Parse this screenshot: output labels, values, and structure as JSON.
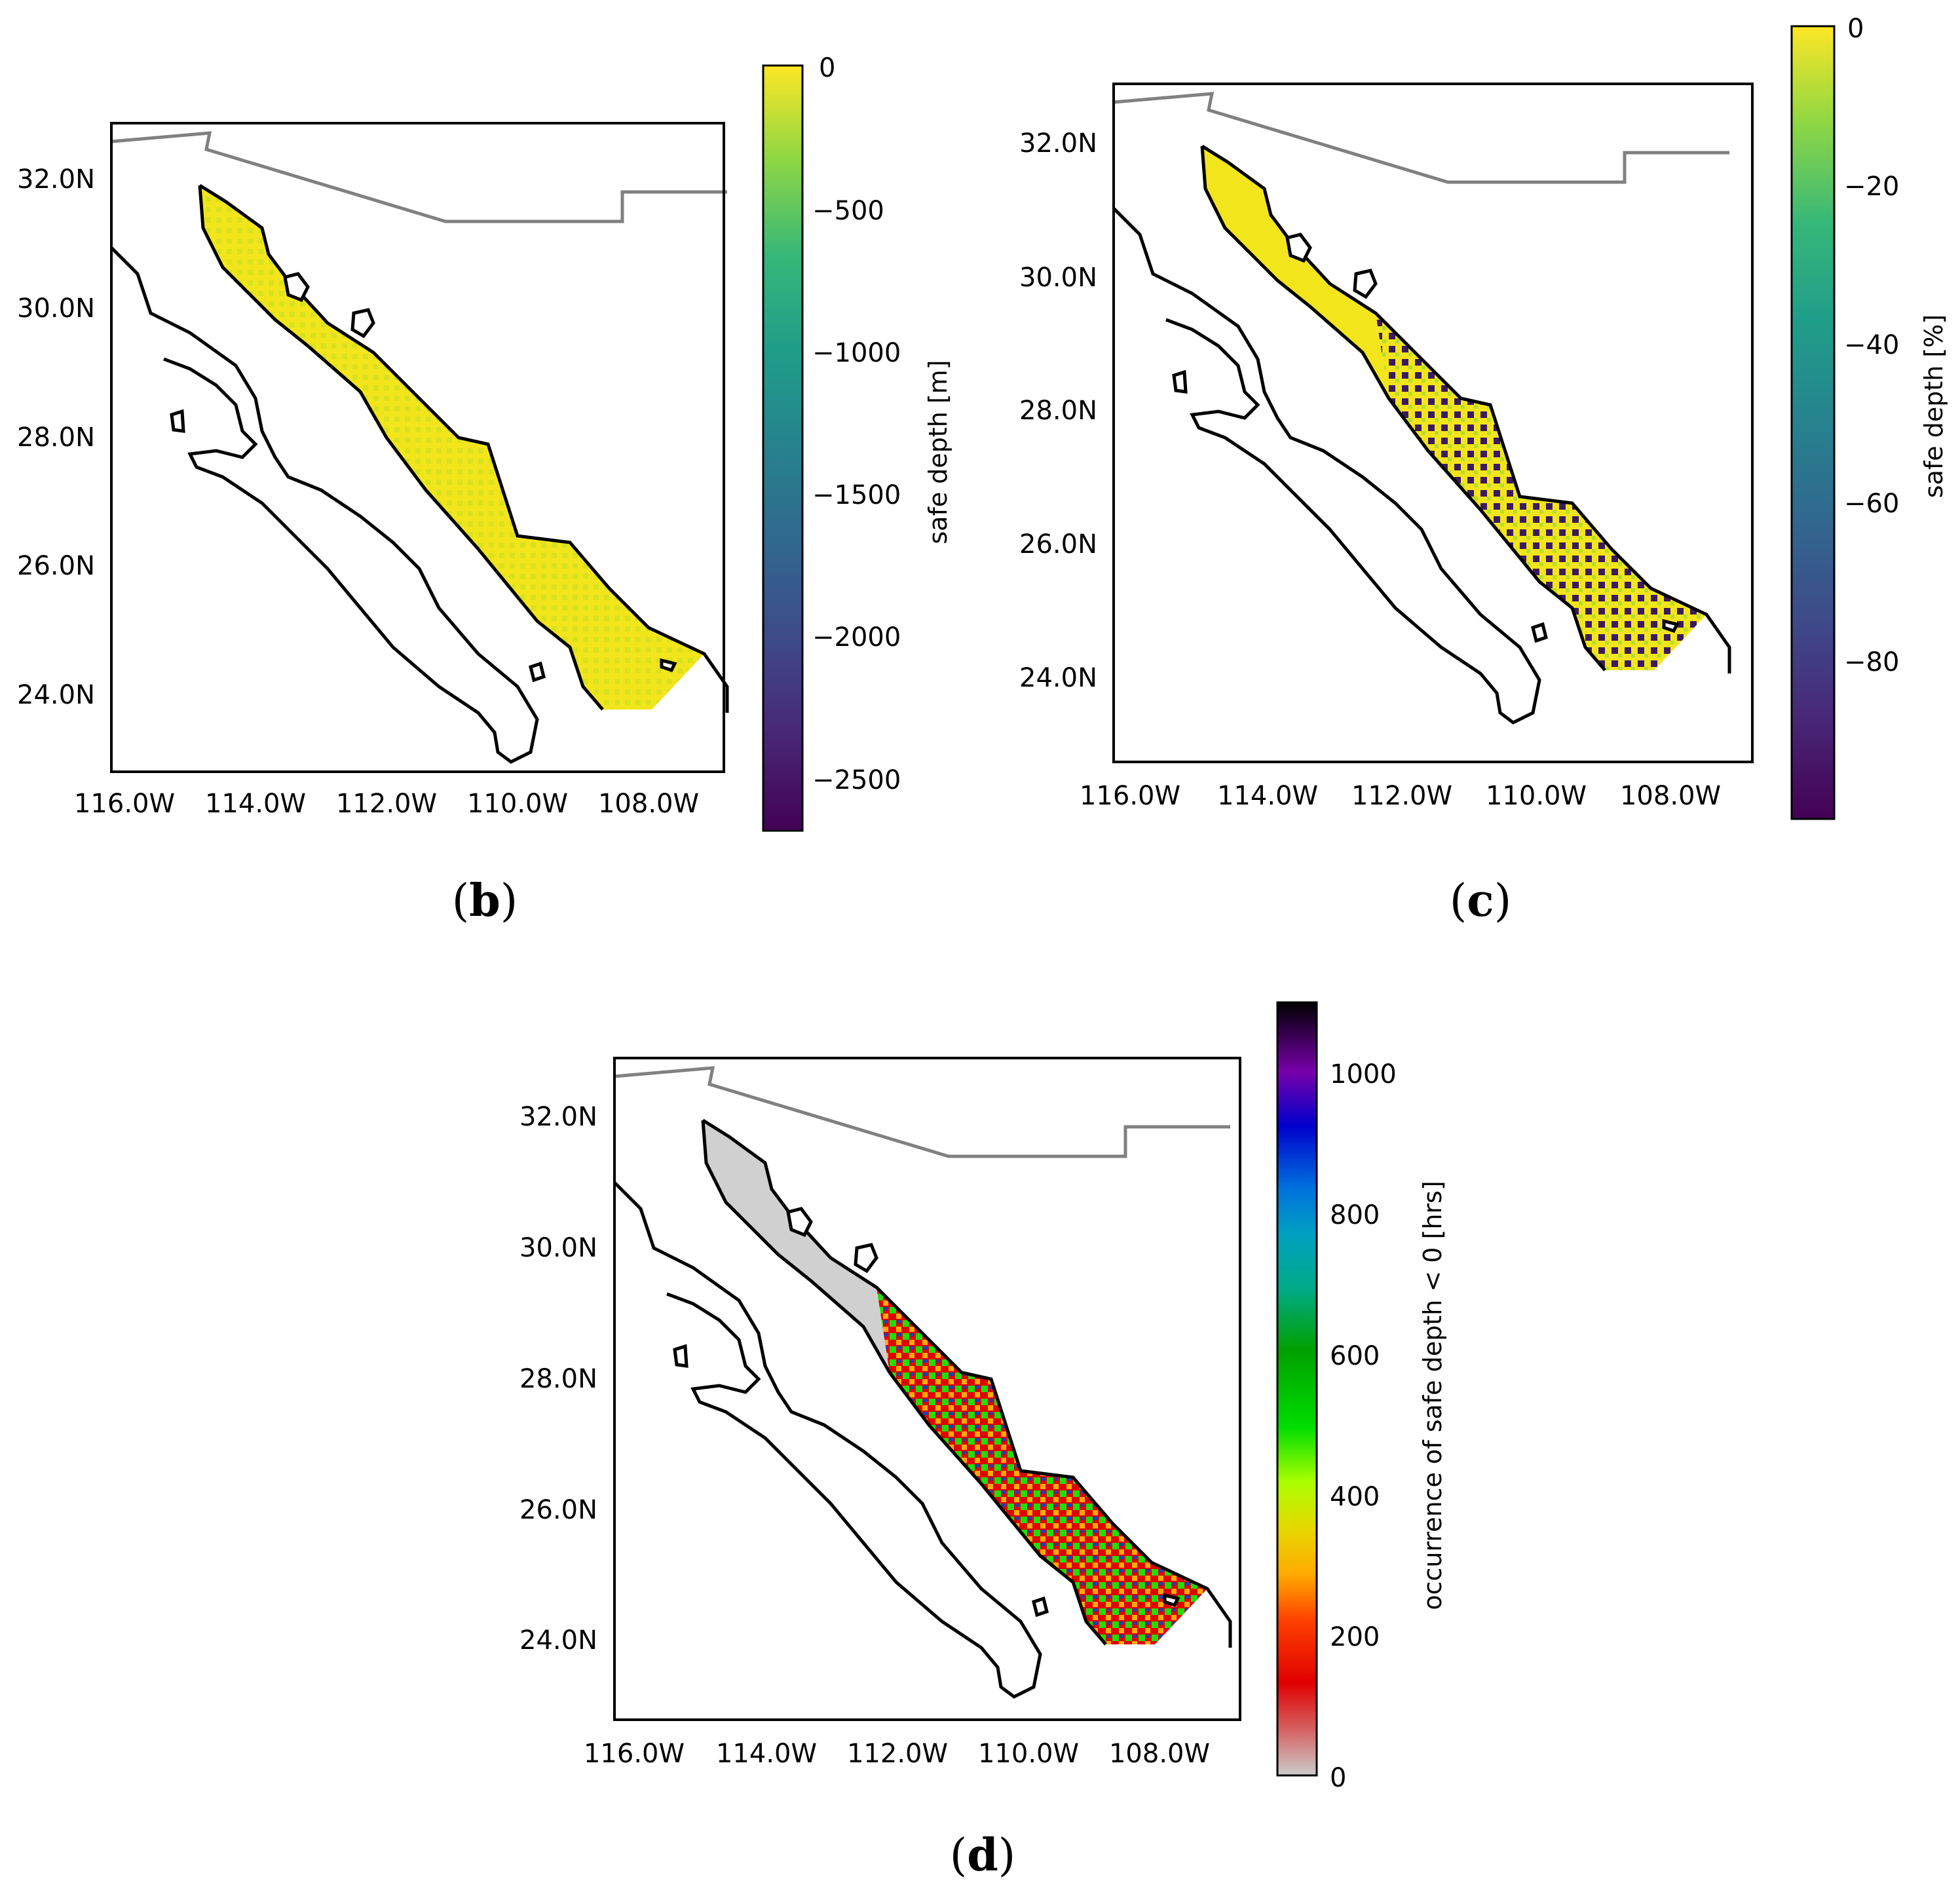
{
  "figure": {
    "panels": [
      {
        "id": "b",
        "caption_letter": "b",
        "lat_ticks": [
          "32.0N",
          "30.0N",
          "28.0N",
          "26.0N",
          "24.0N"
        ],
        "lon_ticks": [
          "116.0W",
          "114.0W",
          "112.0W",
          "110.0W",
          "108.0W"
        ],
        "colorbar": {
          "label": "safe depth [m]",
          "colormap": "viridis",
          "ticks": [
            "0",
            "−500",
            "−1000",
            "−1500",
            "−2000",
            "−2500"
          ],
          "range": [
            -2700,
            0
          ]
        },
        "dominant_fill_color": "#f3e51c"
      },
      {
        "id": "c",
        "caption_letter": "c",
        "lat_ticks": [
          "32.0N",
          "30.0N",
          "28.0N",
          "26.0N",
          "24.0N"
        ],
        "lon_ticks": [
          "116.0W",
          "114.0W",
          "112.0W",
          "110.0W",
          "108.0W"
        ],
        "colorbar": {
          "label": "safe depth [%]",
          "colormap": "viridis",
          "ticks": [
            "0",
            "−20",
            "−40",
            "−60",
            "−80"
          ],
          "range": [
            -100,
            0
          ]
        },
        "dominant_fill_color": "#f3e51c",
        "secondary_fill_color": "#3b1a5e"
      },
      {
        "id": "d",
        "caption_letter": "d",
        "lat_ticks": [
          "32.0N",
          "30.0N",
          "28.0N",
          "26.0N",
          "24.0N"
        ],
        "lon_ticks": [
          "116.0W",
          "114.0W",
          "112.0W",
          "110.0W",
          "108.0W"
        ],
        "colorbar": {
          "label": "occurrence of safe depth < 0 [hrs]",
          "colormap": "nipy_spectral_r-like",
          "ticks": [
            "0",
            "200",
            "400",
            "600",
            "800",
            "1000"
          ],
          "range": [
            0,
            1100
          ]
        },
        "dominant_fill_color": "#d0d0d0",
        "secondary_fill_color": "#e00000"
      }
    ],
    "colors": {
      "coastline": "#000000",
      "border": "#808080"
    }
  }
}
